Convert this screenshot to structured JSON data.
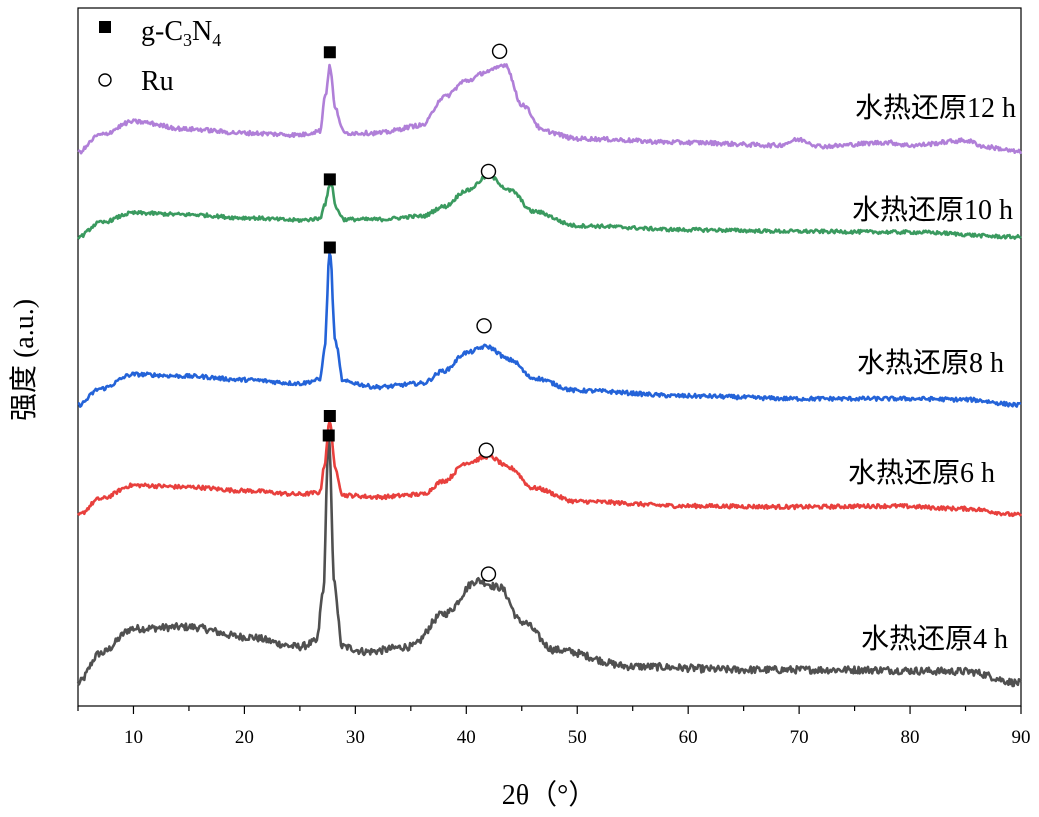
{
  "chart_data": {
    "type": "line",
    "title": "",
    "xlabel": "2θ（°）",
    "ylabel": "强度 (a.u.)",
    "xlim": [
      5,
      90
    ],
    "xticks": [
      10,
      20,
      30,
      40,
      50,
      60,
      70,
      80,
      90
    ],
    "yticks": [],
    "legend": {
      "position": "top-left",
      "entries": [
        {
          "marker": "filled-square",
          "label_parts": [
            "g-C",
            "3",
            "N",
            "4"
          ]
        },
        {
          "marker": "open-circle",
          "label": "Ru"
        }
      ]
    },
    "series": [
      {
        "name": "水热还原4 h",
        "color": "#505050",
        "baseline": [
          [
            5,
            0
          ],
          [
            7,
            0.18
          ],
          [
            10,
            0.33
          ],
          [
            15,
            0.34
          ],
          [
            20,
            0.28
          ],
          [
            25,
            0.22
          ],
          [
            26.5,
            0.25
          ],
          [
            27.1,
            0.55
          ],
          [
            27.6,
            1.5
          ],
          [
            28.1,
            0.6
          ],
          [
            28.8,
            0.22
          ],
          [
            31,
            0.19
          ],
          [
            35,
            0.22
          ],
          [
            38,
            0.42
          ],
          [
            41,
            0.62
          ],
          [
            43,
            0.58
          ],
          [
            45,
            0.37
          ],
          [
            48,
            0.2
          ],
          [
            55,
            0.1
          ],
          [
            65,
            0.08
          ],
          [
            75,
            0.08
          ],
          [
            85,
            0.07
          ],
          [
            90,
            0.0
          ]
        ],
        "peaks": [
          {
            "type": "g-C3N4",
            "x": 27.6,
            "y": 1.5
          },
          {
            "type": "Ru",
            "x": 42.0,
            "y": 0.66
          }
        ]
      },
      {
        "name": "水热还原6 h",
        "color": "#E8403D",
        "baseline": [
          [
            5,
            0
          ],
          [
            7,
            0.18
          ],
          [
            10,
            0.33
          ],
          [
            15,
            0.31
          ],
          [
            20,
            0.27
          ],
          [
            25,
            0.23
          ],
          [
            26.8,
            0.25
          ],
          [
            27.2,
            0.55
          ],
          [
            27.7,
            1.05
          ],
          [
            28.2,
            0.5
          ],
          [
            28.9,
            0.22
          ],
          [
            32,
            0.2
          ],
          [
            36,
            0.23
          ],
          [
            38,
            0.38
          ],
          [
            40,
            0.58
          ],
          [
            42,
            0.65
          ],
          [
            44,
            0.52
          ],
          [
            46,
            0.3
          ],
          [
            50,
            0.15
          ],
          [
            60,
            0.1
          ],
          [
            70,
            0.09
          ],
          [
            78,
            0.1
          ],
          [
            85,
            0.07
          ],
          [
            90,
            0.0
          ]
        ],
        "peaks": [
          {
            "type": "g-C3N4",
            "x": 27.7,
            "y": 1.1
          },
          {
            "type": "Ru",
            "x": 41.8,
            "y": 0.72
          }
        ]
      },
      {
        "name": "水热还原8 h",
        "color": "#2463D8",
        "baseline": [
          [
            5,
            0
          ],
          [
            7,
            0.18
          ],
          [
            10,
            0.34
          ],
          [
            15,
            0.32
          ],
          [
            20,
            0.28
          ],
          [
            25,
            0.24
          ],
          [
            26.8,
            0.28
          ],
          [
            27.2,
            0.6
          ],
          [
            27.7,
            1.7
          ],
          [
            28.2,
            0.7
          ],
          [
            28.9,
            0.26
          ],
          [
            32,
            0.2
          ],
          [
            36,
            0.24
          ],
          [
            38,
            0.38
          ],
          [
            40,
            0.58
          ],
          [
            41.8,
            0.65
          ],
          [
            44,
            0.5
          ],
          [
            46,
            0.3
          ],
          [
            50,
            0.16
          ],
          [
            60,
            0.1
          ],
          [
            70,
            0.07
          ],
          [
            80,
            0.07
          ],
          [
            85,
            0.06
          ],
          [
            90,
            0.0
          ]
        ],
        "peaks": [
          {
            "type": "g-C3N4",
            "x": 27.7,
            "y": 1.75
          },
          {
            "type": "Ru",
            "x": 41.6,
            "y": 0.88
          }
        ]
      },
      {
        "name": "水热还原10 h",
        "color": "#3A9A5F",
        "baseline": [
          [
            5,
            0
          ],
          [
            7,
            0.18
          ],
          [
            10,
            0.3
          ],
          [
            15,
            0.28
          ],
          [
            20,
            0.24
          ],
          [
            25,
            0.21
          ],
          [
            26.8,
            0.23
          ],
          [
            27.2,
            0.4
          ],
          [
            27.8,
            0.68
          ],
          [
            28.3,
            0.35
          ],
          [
            29,
            0.22
          ],
          [
            32,
            0.22
          ],
          [
            36,
            0.26
          ],
          [
            38,
            0.38
          ],
          [
            40,
            0.58
          ],
          [
            42,
            0.76
          ],
          [
            44,
            0.58
          ],
          [
            46,
            0.32
          ],
          [
            50,
            0.14
          ],
          [
            60,
            0.09
          ],
          [
            70,
            0.07
          ],
          [
            80,
            0.06
          ],
          [
            90,
            0.0
          ]
        ],
        "peaks": [
          {
            "type": "g-C3N4",
            "x": 27.7,
            "y": 0.72
          },
          {
            "type": "Ru",
            "x": 42.0,
            "y": 0.82
          }
        ]
      },
      {
        "name": "水热还原12 h",
        "color": "#B07FD8",
        "baseline": [
          [
            5,
            0
          ],
          [
            7,
            0.18
          ],
          [
            10,
            0.32
          ],
          [
            15,
            0.24
          ],
          [
            20,
            0.2
          ],
          [
            25,
            0.18
          ],
          [
            26.8,
            0.22
          ],
          [
            27.3,
            0.6
          ],
          [
            27.7,
            0.9
          ],
          [
            28.2,
            0.45
          ],
          [
            29,
            0.2
          ],
          [
            32,
            0.2
          ],
          [
            36,
            0.28
          ],
          [
            38,
            0.58
          ],
          [
            40,
            0.75
          ],
          [
            42,
            0.85
          ],
          [
            43.5,
            0.92
          ],
          [
            45,
            0.5
          ],
          [
            47,
            0.22
          ],
          [
            50,
            0.14
          ],
          [
            60,
            0.1
          ],
          [
            68,
            0.07
          ],
          [
            70,
            0.13
          ],
          [
            72,
            0.06
          ],
          [
            78,
            0.1
          ],
          [
            80,
            0.07
          ],
          [
            85,
            0.12
          ],
          [
            87,
            0.05
          ],
          [
            90,
            0.0
          ]
        ],
        "peaks": [
          {
            "type": "g-C3N4",
            "x": 27.7,
            "y": 1.05
          },
          {
            "type": "Ru",
            "x": 43.0,
            "y": 1.06
          }
        ]
      }
    ]
  }
}
